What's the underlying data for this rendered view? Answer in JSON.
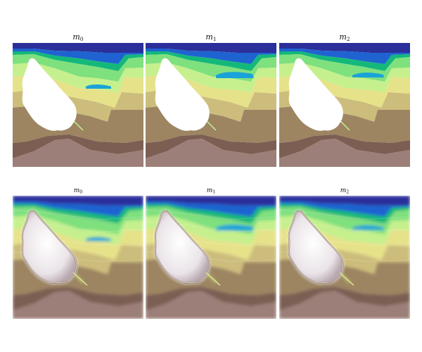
{
  "figure": {
    "top_row": {
      "panels": [
        {
          "title_base": "m",
          "title_sub": "0"
        },
        {
          "title_base": "m",
          "title_sub": "1"
        },
        {
          "title_base": "m",
          "title_sub": "2"
        }
      ]
    },
    "bottom_row": {
      "panels": [
        {
          "title_base": "m",
          "title_sub": "0"
        },
        {
          "title_base": "m",
          "title_sub": "1"
        },
        {
          "title_base": "m",
          "title_sub": "2"
        }
      ]
    }
  },
  "colors": {
    "layer_1": "#2b2f9a",
    "layer_2": "#1f63d0",
    "layer_3": "#14b87a",
    "layer_4": "#7fe07e",
    "layer_5": "#c5f08d",
    "layer_6": "#e6e28a",
    "layer_7": "#cdbd7c",
    "layer_8": "#9d8562",
    "layer_9": "#7c5e52",
    "layer_10": "#9c7f78",
    "salt_body": "#ffffff",
    "lens": "#1aa3d8"
  }
}
